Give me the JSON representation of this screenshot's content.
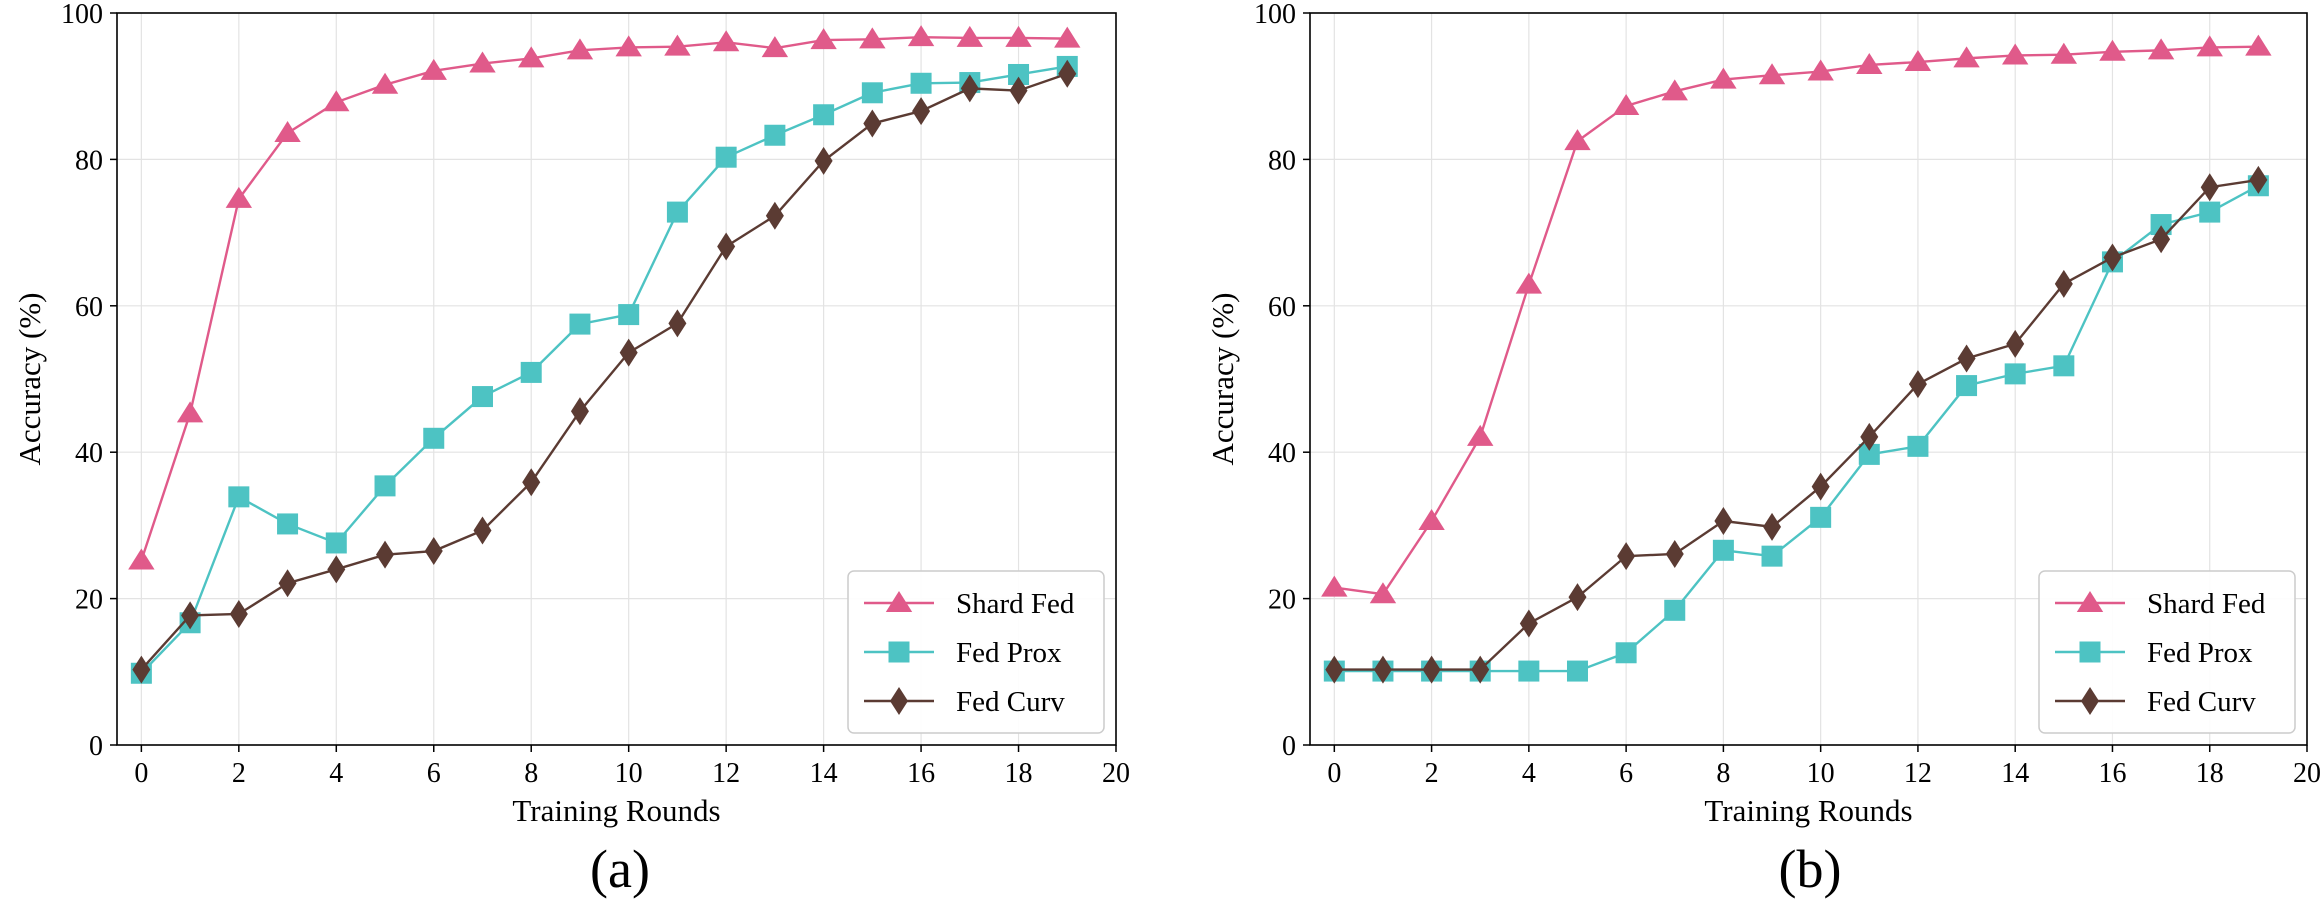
{
  "chart_data": [
    {
      "type": "line",
      "panel_label": "(a)",
      "title": "",
      "xlabel": "Training Rounds",
      "ylabel": "Accuracy (%)",
      "xlim": [
        -0.5,
        20
      ],
      "ylim": [
        0,
        100
      ],
      "xticks": [
        0,
        2,
        4,
        6,
        8,
        10,
        12,
        14,
        16,
        18,
        20
      ],
      "yticks": [
        0,
        20,
        40,
        60,
        80,
        100
      ],
      "grid": true,
      "legend_position": "lower-right",
      "x": [
        0,
        1,
        2,
        3,
        4,
        5,
        6,
        7,
        8,
        9,
        10,
        11,
        12,
        13,
        14,
        15,
        16,
        17,
        18,
        19
      ],
      "series": [
        {
          "name": "Shard Fed",
          "color": "#e05a8a",
          "marker": "triangle",
          "values": [
            25.2,
            45.3,
            74.6,
            83.6,
            87.8,
            90.2,
            92.1,
            93.1,
            93.8,
            94.9,
            95.3,
            95.4,
            96.0,
            95.2,
            96.3,
            96.4,
            96.7,
            96.6,
            96.6,
            96.5
          ]
        },
        {
          "name": "Fed Prox",
          "color": "#4dc3c3",
          "marker": "square",
          "values": [
            9.8,
            16.7,
            33.9,
            30.2,
            27.6,
            35.4,
            41.9,
            47.6,
            50.9,
            57.5,
            58.8,
            72.8,
            80.3,
            83.3,
            86.1,
            89.1,
            90.4,
            90.5,
            91.6,
            92.7
          ]
        },
        {
          "name": "Fed Curv",
          "color": "#5b3b33",
          "marker": "diamond",
          "values": [
            10.3,
            17.7,
            17.9,
            22.1,
            24.0,
            26.0,
            26.5,
            29.3,
            35.9,
            45.6,
            53.6,
            57.6,
            68.1,
            72.3,
            79.8,
            84.9,
            86.6,
            89.7,
            89.4,
            91.7
          ]
        }
      ]
    },
    {
      "type": "line",
      "panel_label": "(b)",
      "title": "",
      "xlabel": "Training Rounds",
      "ylabel": "Accuracy (%)",
      "xlim": [
        -0.5,
        20
      ],
      "ylim": [
        0,
        100
      ],
      "xticks": [
        0,
        2,
        4,
        6,
        8,
        10,
        12,
        14,
        16,
        18,
        20
      ],
      "yticks": [
        0,
        20,
        40,
        60,
        80,
        100
      ],
      "grid": true,
      "legend_position": "lower-right",
      "x": [
        0,
        1,
        2,
        3,
        4,
        5,
        6,
        7,
        8,
        9,
        10,
        11,
        12,
        13,
        14,
        15,
        16,
        17,
        18,
        19
      ],
      "series": [
        {
          "name": "Shard Fed",
          "color": "#e05a8a",
          "marker": "triangle",
          "values": [
            21.5,
            20.6,
            30.6,
            42.1,
            62.9,
            82.5,
            87.3,
            89.3,
            90.9,
            91.5,
            92.0,
            92.9,
            93.3,
            93.8,
            94.2,
            94.3,
            94.7,
            94.9,
            95.3,
            95.4
          ]
        },
        {
          "name": "Fed Prox",
          "color": "#4dc3c3",
          "marker": "square",
          "values": [
            10.1,
            10.1,
            10.1,
            10.1,
            10.1,
            10.1,
            12.6,
            18.4,
            26.6,
            25.8,
            31.1,
            39.7,
            40.8,
            49.1,
            50.7,
            51.8,
            66.0,
            71.1,
            72.8,
            76.4
          ]
        },
        {
          "name": "Fed Curv",
          "color": "#5b3b33",
          "marker": "diamond",
          "values": [
            10.3,
            10.3,
            10.3,
            10.3,
            16.6,
            20.2,
            25.8,
            26.1,
            30.6,
            29.8,
            35.3,
            42.1,
            49.3,
            52.8,
            54.8,
            63.0,
            66.6,
            69.1,
            76.2,
            77.2
          ]
        }
      ]
    }
  ]
}
